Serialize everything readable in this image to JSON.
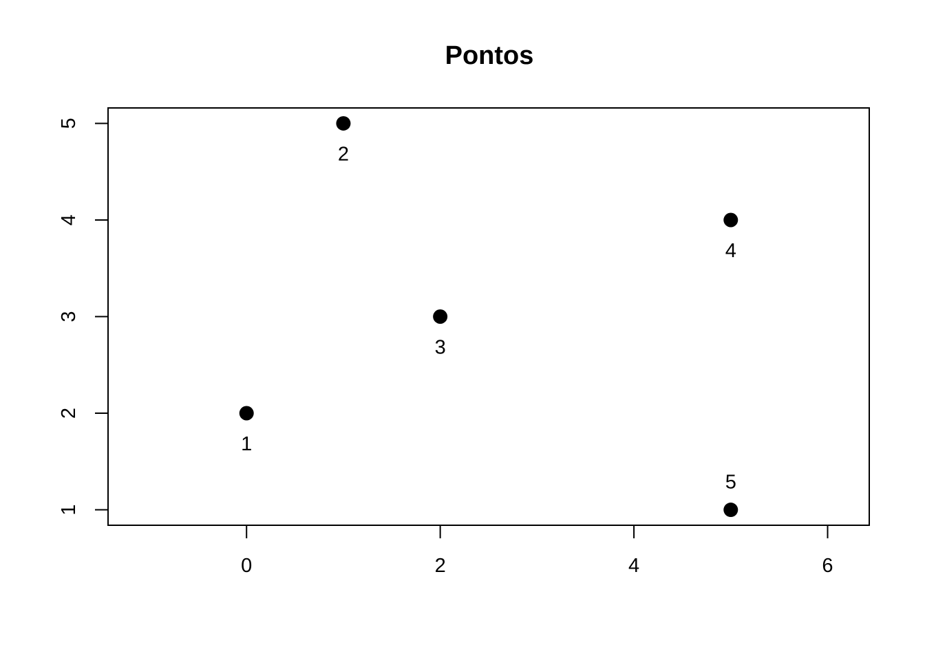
{
  "chart_data": {
    "type": "scatter",
    "title": "Pontos",
    "xlabel": "",
    "ylabel": "",
    "xlim": [
      -1.43,
      6.43
    ],
    "ylim": [
      0.84,
      5.16
    ],
    "x_ticks": [
      0,
      2,
      4,
      6
    ],
    "y_ticks": [
      1,
      2,
      3,
      4,
      5
    ],
    "grid": false,
    "point_color": "#000000",
    "points": [
      {
        "x": 0,
        "y": 2,
        "label": "1",
        "label_pos": "below"
      },
      {
        "x": 1,
        "y": 5,
        "label": "2",
        "label_pos": "below"
      },
      {
        "x": 2,
        "y": 3,
        "label": "3",
        "label_pos": "below"
      },
      {
        "x": 5,
        "y": 4,
        "label": "4",
        "label_pos": "below"
      },
      {
        "x": 5,
        "y": 1,
        "label": "5",
        "label_pos": "above"
      }
    ]
  }
}
